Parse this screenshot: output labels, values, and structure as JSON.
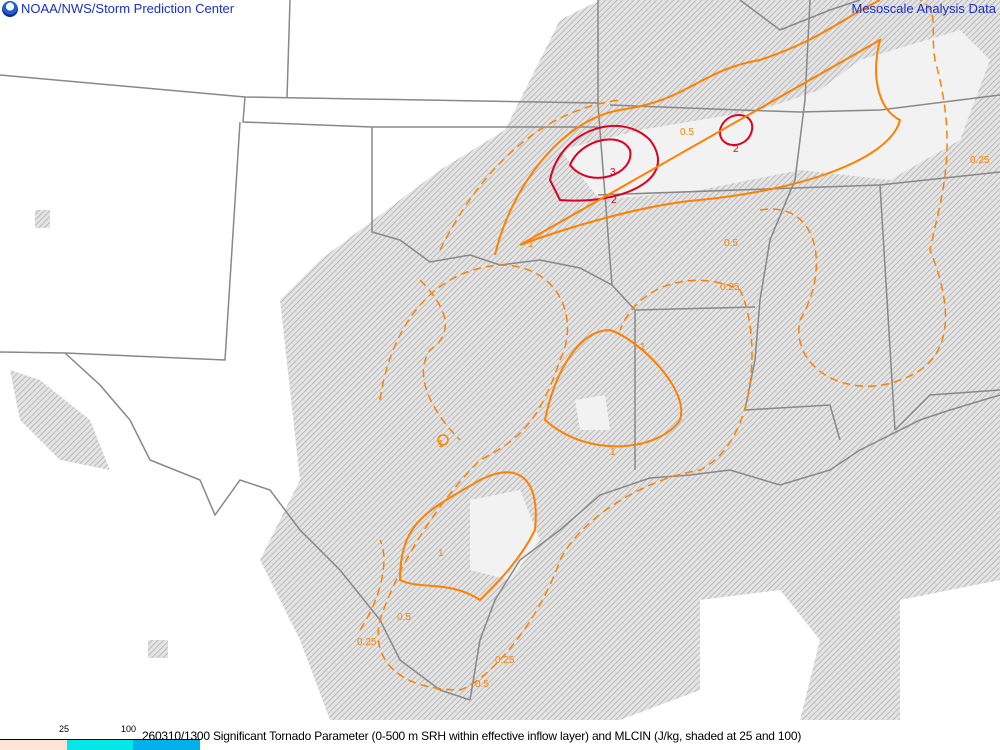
{
  "header": {
    "left_title": "NOAA/NWS/Storm Prediction Center",
    "right_title": "Mesoscale Analysis Data",
    "logo_icon": "noaa-logo-icon"
  },
  "footer": {
    "caption": "260310/1300 Significant Tornado Parameter (0-500 m SRH within effective inflow layer) and MLCIN (J/kg, shaded at 25 and 100)",
    "legend": [
      {
        "label": "",
        "color": "#fde3d8"
      },
      {
        "label": "25",
        "color": "#00e8e8"
      },
      {
        "label": "100",
        "color": "#00b0e8"
      }
    ]
  },
  "colors": {
    "stp_high": "#e00020",
    "stp_low": "#ff8000",
    "boundaries": "#888888",
    "cin_hatch": "#aaaaaa"
  },
  "contour_labels": [
    "3",
    "2",
    "2",
    "1",
    "1",
    "1",
    "1",
    "0.5",
    "0.5",
    "0.5",
    "0.25",
    "0.25",
    "0.25",
    "0.5",
    "1",
    "0.25"
  ]
}
